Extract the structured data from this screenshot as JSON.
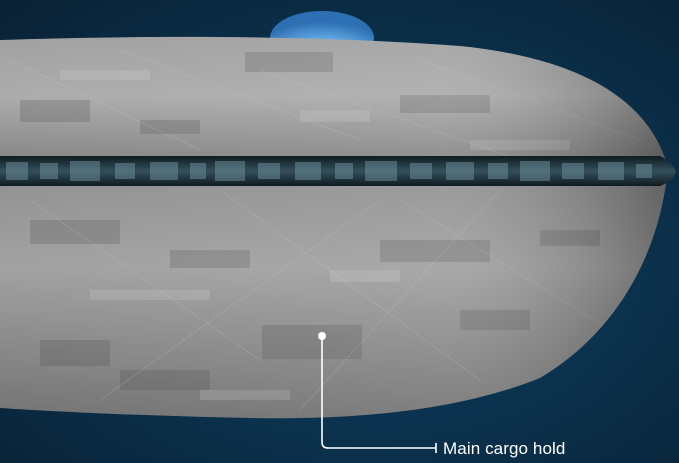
{
  "scene": {
    "subject": "ship-hull-illustration",
    "colors": {
      "background_top": "#0d2a3f",
      "background_bottom": "#0a3554",
      "hull_light": "#b9b9b9",
      "hull_dark": "#5e5e5e",
      "window_band": "#1b2a33",
      "dome": "#4aa0e6",
      "dome_glow": "#bfe4ff",
      "callout_line": "#ffffff"
    }
  },
  "callouts": [
    {
      "label": "Main cargo hold"
    }
  ]
}
